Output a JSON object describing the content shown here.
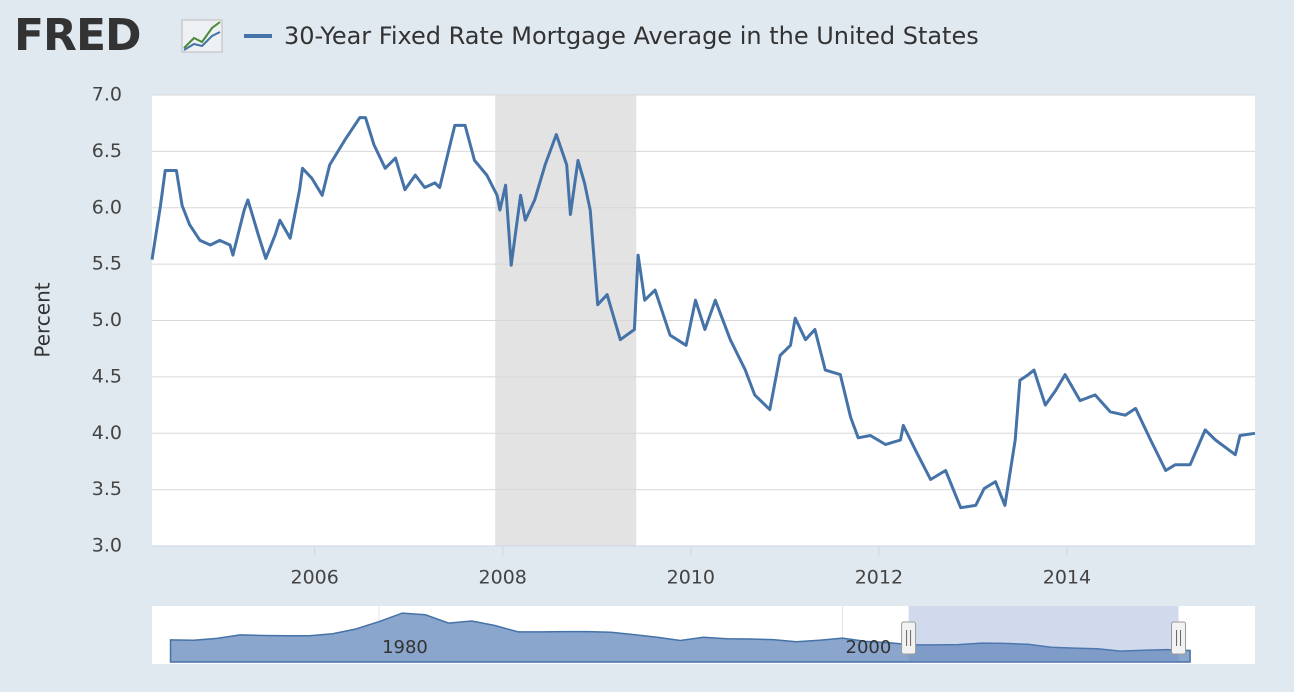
{
  "logo": "FRED",
  "chart_data": {
    "type": "line",
    "title": "30-Year Fixed Rate Mortgage Average in the United States",
    "y_label": "Percent",
    "xlim": [
      2004.27,
      2016.0
    ],
    "xticks": [
      2006,
      2008,
      2010,
      2012,
      2014
    ],
    "ylim": [
      3,
      7
    ],
    "yticks": [
      {
        "value": 3,
        "label": "3.0"
      },
      3.5,
      {
        "value": 4,
        "label": "4.0"
      },
      4.5,
      {
        "value": 5,
        "label": "5.0"
      },
      5.5,
      {
        "value": 6,
        "label": "6.0"
      },
      6.5,
      {
        "value": 7,
        "label": "7.0"
      }
    ],
    "grid": true,
    "shading": [
      [
        2007.92,
        2009.42
      ]
    ],
    "series": [
      {
        "name": "30-Year Fixed Rate Mortgage Average in the United States",
        "color": "#4572a7",
        "x": [
          2004.27,
          2004.36,
          2004.41,
          2004.53,
          2004.59,
          2004.67,
          2004.78,
          2004.89,
          2004.99,
          2005.1,
          2005.13,
          2005.25,
          2005.29,
          2005.4,
          2005.48,
          2005.58,
          2005.63,
          2005.74,
          2005.84,
          2005.87,
          2005.97,
          2006.08,
          2006.16,
          2006.32,
          2006.48,
          2006.54,
          2006.63,
          2006.75,
          2006.86,
          2006.96,
          2007.07,
          2007.17,
          2007.28,
          2007.33,
          2007.44,
          2007.49,
          2007.6,
          2007.7,
          2007.83,
          2007.94,
          2007.97,
          2008.03,
          2008.09,
          2008.19,
          2008.24,
          2008.34,
          2008.45,
          2008.57,
          2008.68,
          2008.72,
          2008.8,
          2008.87,
          2008.93,
          2009.01,
          2009.11,
          2009.25,
          2009.4,
          2009.44,
          2009.51,
          2009.62,
          2009.78,
          2009.95,
          2010.05,
          2010.15,
          2010.26,
          2010.42,
          2010.58,
          2010.68,
          2010.84,
          2010.95,
          2011.06,
          2011.11,
          2011.22,
          2011.32,
          2011.43,
          2011.59,
          2011.7,
          2011.78,
          2011.91,
          2012.07,
          2012.23,
          2012.26,
          2012.39,
          2012.55,
          2012.71,
          2012.87,
          2013.03,
          2013.12,
          2013.24,
          2013.34,
          2013.45,
          2013.5,
          2013.59,
          2013.65,
          2013.77,
          2013.88,
          2013.98,
          2014.14,
          2014.3,
          2014.46,
          2014.62,
          2014.73,
          2014.89,
          2015.05,
          2015.15,
          2015.31,
          2015.47,
          2015.58,
          2015.79,
          2015.84,
          2016.0
        ],
        "values": [
          5.54,
          6.02,
          6.33,
          6.33,
          6.02,
          5.85,
          5.71,
          5.67,
          5.71,
          5.67,
          5.58,
          5.98,
          6.07,
          5.76,
          5.55,
          5.76,
          5.89,
          5.73,
          6.16,
          6.35,
          6.26,
          6.11,
          6.38,
          6.6,
          6.8,
          6.8,
          6.56,
          6.35,
          6.44,
          6.16,
          6.29,
          6.18,
          6.22,
          6.18,
          6.56,
          6.73,
          6.73,
          6.42,
          6.29,
          6.11,
          5.98,
          6.2,
          5.49,
          6.11,
          5.89,
          6.07,
          6.38,
          6.65,
          6.38,
          5.94,
          6.42,
          6.22,
          5.98,
          5.14,
          5.23,
          4.83,
          4.92,
          5.58,
          5.18,
          5.27,
          4.87,
          4.78,
          5.18,
          4.92,
          5.18,
          4.83,
          4.56,
          4.34,
          4.21,
          4.69,
          4.78,
          5.02,
          4.83,
          4.92,
          4.56,
          4.52,
          4.14,
          3.96,
          3.98,
          3.9,
          3.94,
          4.07,
          3.85,
          3.59,
          3.67,
          3.34,
          3.36,
          3.51,
          3.57,
          3.36,
          3.94,
          4.47,
          4.52,
          4.56,
          4.25,
          4.38,
          4.52,
          4.29,
          4.34,
          4.19,
          4.16,
          4.22,
          3.94,
          3.67,
          3.72,
          3.72,
          4.03,
          3.94,
          3.81,
          3.98,
          4.0
        ]
      }
    ],
    "navigator": {
      "xlim": [
        1970.2,
        2017.8
      ],
      "ylim": [
        0,
        19
      ],
      "xticks": [
        1980,
        2000
      ],
      "selection": [
        2002.85,
        2014.5
      ],
      "x": [
        1971,
        1972,
        1973,
        1974,
        1975,
        1976,
        1977,
        1978,
        1979,
        1980,
        1981,
        1982,
        1983,
        1984,
        1985,
        1986,
        1987,
        1988,
        1989,
        1990,
        1991,
        1992,
        1993,
        1994,
        1995,
        1996,
        1997,
        1998,
        1999,
        2000,
        2001,
        2002,
        2003,
        2004,
        2005,
        2006,
        2007,
        2008,
        2009,
        2010,
        2011,
        2012,
        2013,
        2014,
        2015
      ],
      "values": [
        7.5,
        7.4,
        8.0,
        9.2,
        9.0,
        8.9,
        8.9,
        9.6,
        11.2,
        13.7,
        16.6,
        16.0,
        13.2,
        13.9,
        12.4,
        10.2,
        10.2,
        10.3,
        10.3,
        10.1,
        9.3,
        8.4,
        7.3,
        8.4,
        7.9,
        7.8,
        7.6,
        6.9,
        7.4,
        8.1,
        7.0,
        6.5,
        5.8,
        5.8,
        5.9,
        6.4,
        6.3,
        6.0,
        5.0,
        4.7,
        4.5,
        3.7,
        4.0,
        4.2,
        3.9
      ]
    }
  }
}
